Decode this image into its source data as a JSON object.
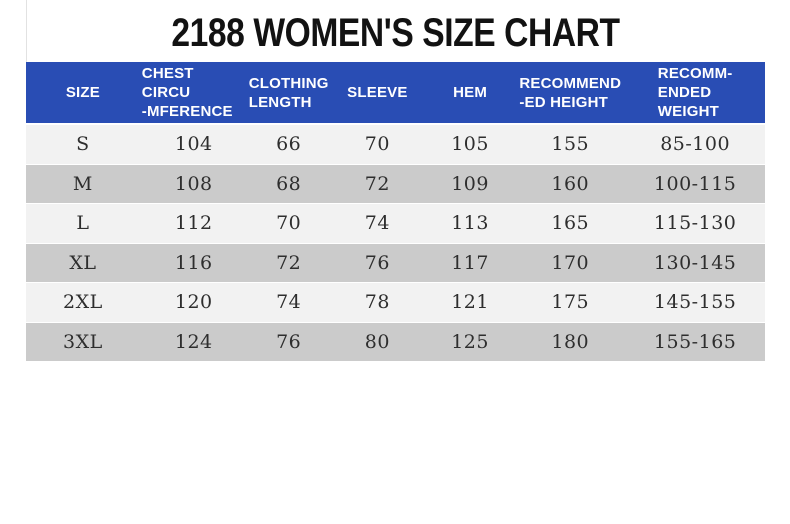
{
  "title": "2188 WOMEN'S SIZE CHART",
  "colors": {
    "header_bg": "#294db4",
    "header_text": "#ffffff",
    "row_light": "#f2f2f2",
    "row_gray": "#cbcbcb",
    "body_text": "#2e2e2e",
    "title_text": "#121212"
  },
  "table": {
    "headers": [
      {
        "lines": [
          "SIZE"
        ]
      },
      {
        "lines": [
          "CHEST CIRCU",
          "-MFERENCE"
        ]
      },
      {
        "lines": [
          "CLOTHING",
          "LENGTH"
        ]
      },
      {
        "lines": [
          "SLEEVE"
        ]
      },
      {
        "lines": [
          "HEM"
        ]
      },
      {
        "lines": [
          "RECOMMEND",
          "-ED HEIGHT"
        ]
      },
      {
        "lines": [
          "RECOMM-",
          "ENDED",
          "WEIGHT"
        ]
      }
    ],
    "rows": [
      [
        "S",
        "104",
        "66",
        "70",
        "105",
        "155",
        "85-100"
      ],
      [
        "M",
        "108",
        "68",
        "72",
        "109",
        "160",
        "100-115"
      ],
      [
        "L",
        "112",
        "70",
        "74",
        "113",
        "165",
        "115-130"
      ],
      [
        "XL",
        "116",
        "72",
        "76",
        "117",
        "170",
        "130-145"
      ],
      [
        "2XL",
        "120",
        "74",
        "78",
        "121",
        "175",
        "145-155"
      ],
      [
        "3XL",
        "124",
        "76",
        "80",
        "125",
        "180",
        "155-165"
      ]
    ]
  },
  "chart_data": {
    "type": "table",
    "title": "2188 WOMEN'S SIZE CHART",
    "columns": [
      "SIZE",
      "CHEST CIRCUMFERENCE",
      "CLOTHING LENGTH",
      "SLEEVE",
      "HEM",
      "RECOMMENDED HEIGHT",
      "RECOMMENDED WEIGHT"
    ],
    "rows": [
      [
        "S",
        104,
        66,
        70,
        105,
        155,
        "85-100"
      ],
      [
        "M",
        108,
        68,
        72,
        109,
        160,
        "100-115"
      ],
      [
        "L",
        112,
        70,
        74,
        113,
        165,
        "115-130"
      ],
      [
        "XL",
        116,
        72,
        76,
        117,
        170,
        "130-145"
      ],
      [
        "2XL",
        120,
        74,
        78,
        121,
        175,
        "145-155"
      ],
      [
        "3XL",
        124,
        76,
        80,
        125,
        180,
        "155-165"
      ]
    ],
    "layout": {
      "striped_rows": true,
      "header_position": "top",
      "units": "cm (dimensions), cm (height), jin (weight)"
    }
  }
}
